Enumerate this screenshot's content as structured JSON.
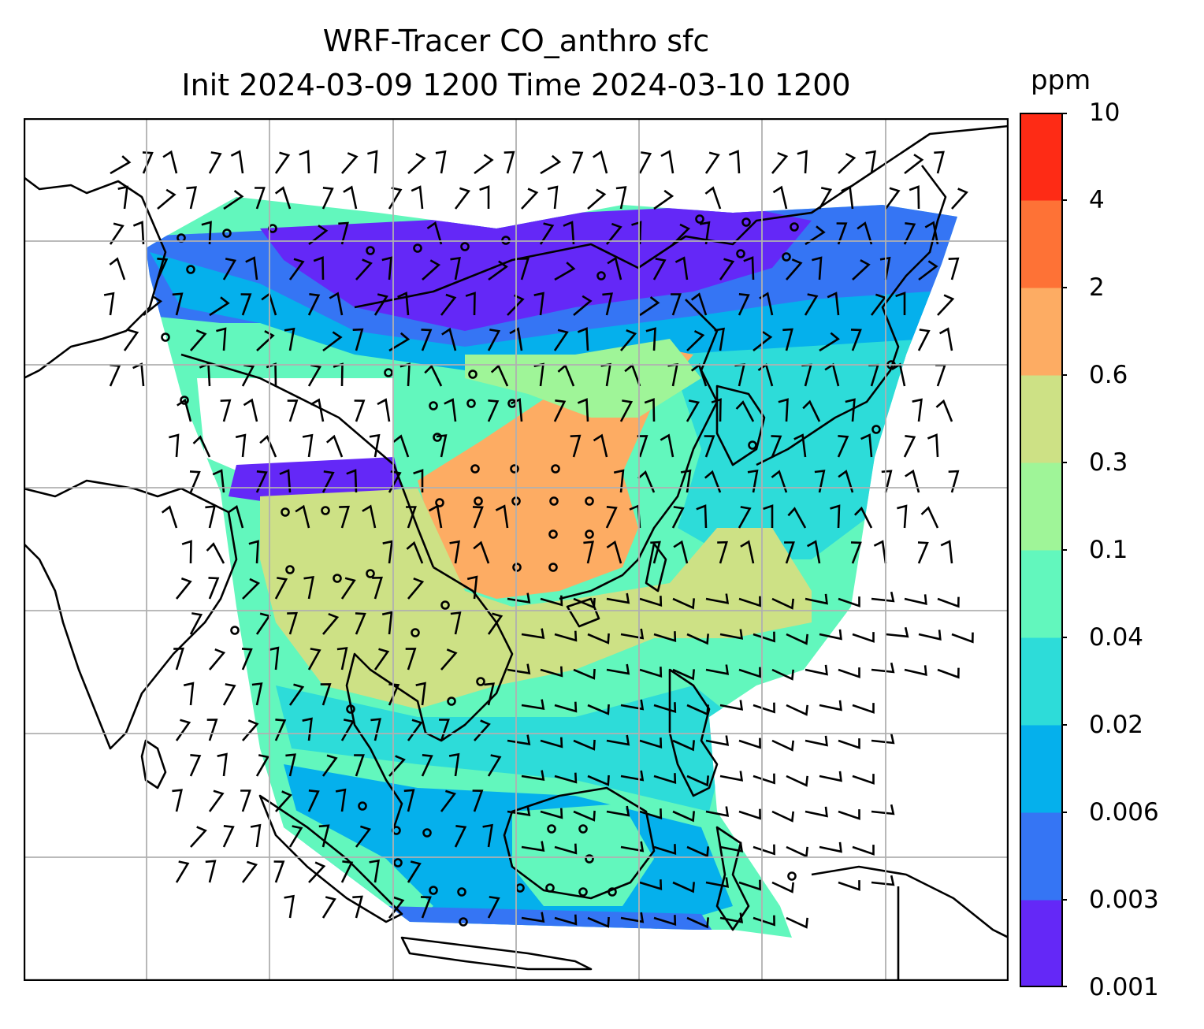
{
  "title": {
    "line1": "WRF-Tracer CO_anthro sfc",
    "line2": "Init 2024-03-09 1200 Time 2024-03-10 1200"
  },
  "colorbar": {
    "unit": "ppm",
    "ticks": [
      "0.001",
      "0.003",
      "0.006",
      "0.02",
      "0.04",
      "0.1",
      "0.3",
      "0.6",
      "2",
      "4",
      "10"
    ],
    "colors": [
      "#6428f7",
      "#3575f4",
      "#05b0ec",
      "#2ddcd9",
      "#62f7bd",
      "#9ff598",
      "#cde185",
      "#fdac63",
      "#fe7236",
      "#fe2b15"
    ]
  },
  "map": {
    "ocean": "#ffffff",
    "gridline": "#b0b0b0",
    "coastline": "#000000"
  }
}
